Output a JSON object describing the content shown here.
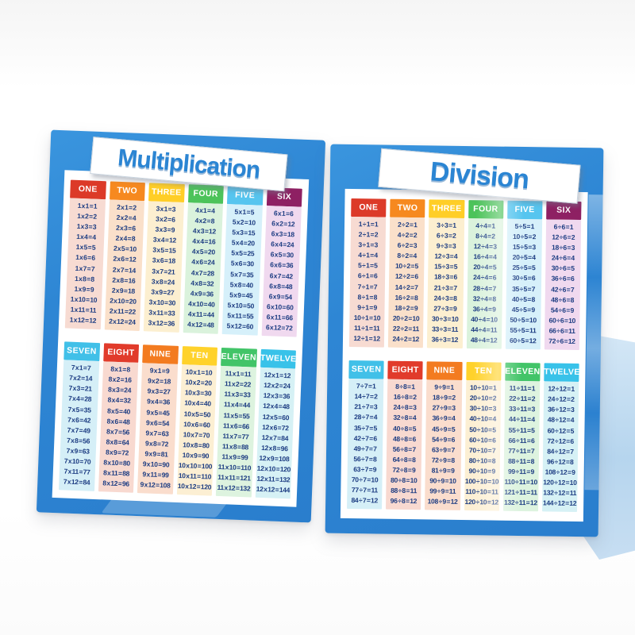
{
  "scene": {
    "poster_blue": "#2E86D4",
    "fact_text_color": "#1C3C82",
    "title_text_color": "#2B85D3",
    "reflection_color": "#BBD7EF"
  },
  "posters": [
    {
      "id": "multiplication",
      "title": "Multiplication",
      "groups": [
        {
          "columns": [
            {
              "label": "ONE",
              "header_color": "#DC3A28",
              "strip_color": "#F7DBD2",
              "rows": [
                "1 x 1 = 1",
                "1 x 2 = 2",
                "1 x 3 = 3",
                "1 x 4 = 4",
                "1 x 5 = 5",
                "1 x 6 = 6",
                "1 x 7 = 7",
                "1 x 8 = 8",
                "1 x 9 = 9",
                "1 x 10 = 10",
                "1 x 11 = 11",
                "1 x 12 = 12"
              ]
            },
            {
              "label": "TWO",
              "header_color": "#F6891F",
              "strip_color": "#FAE0CA",
              "rows": [
                "2 x 1 = 2",
                "2 x 2 = 4",
                "2 x 3 = 6",
                "2 x 4 = 8",
                "2 x 5 = 10",
                "2 x 6 = 12",
                "2 x 7 = 14",
                "2 x 8 = 16",
                "2 x 9 = 18",
                "2 x 10 = 20",
                "2 x 11 = 22",
                "2 x 12 = 24"
              ]
            },
            {
              "label": "THREE",
              "header_color": "#FFCE27",
              "strip_color": "#FCEFD0",
              "rows": [
                "3 x 1 = 3",
                "3 x 2 = 6",
                "3 x 3 = 9",
                "3 x 4 = 12",
                "3 x 5 = 15",
                "3 x 6 = 18",
                "3 x 7 = 21",
                "3 x 8 = 24",
                "3 x 9 = 27",
                "3 x 10 = 30",
                "3 x 11 = 33",
                "3 x 12 = 36"
              ]
            },
            {
              "label": "FOUR",
              "header_color": "#4CC35A",
              "strip_color": "#DAF2DC",
              "rows": [
                "4 x 1 = 4",
                "4 x 2 = 8",
                "4 x 3 = 12",
                "4 x 4 = 16",
                "4 x 5 = 20",
                "4 x 6 = 24",
                "4 x 7 = 28",
                "4 x 8 = 32",
                "4 x 9 = 36",
                "4 x 10 = 40",
                "4 x 11 = 44",
                "4 x 12 = 48"
              ]
            },
            {
              "label": "FIVE",
              "header_color": "#56C5EF",
              "strip_color": "#D6F0FA",
              "rows": [
                "5 x 1 = 5",
                "5 x 2 = 10",
                "5 x 3 = 15",
                "5 x 4 = 20",
                "5 x 5 = 25",
                "5 x 6 = 30",
                "5 x 7 = 35",
                "5 x 8 = 40",
                "5 x 9 = 45",
                "5 x 10 = 50",
                "5 x 11 = 55",
                "5 x 12 = 60"
              ]
            },
            {
              "label": "SIX",
              "header_color": "#8E2063",
              "strip_color": "#F0D9EF",
              "rows": [
                "6 x 1 = 6",
                "6 x 2 = 12",
                "6 x 3 = 18",
                "6 x 4 = 24",
                "6 x 5 = 30",
                "6 x 6 = 36",
                "6 x 7 = 42",
                "6 x 8 = 48",
                "6 x 9 = 54",
                "6 x 10 = 60",
                "6 x 11 = 66",
                "6 x 12 = 72"
              ]
            }
          ]
        },
        {
          "columns": [
            {
              "label": "SEVEN",
              "header_color": "#41C0E8",
              "strip_color": "#D5EFF7",
              "rows": [
                "7 x 1 = 7",
                "7 x 2 = 14",
                "7 x 3 = 21",
                "7 x 4 = 28",
                "7 x 5 = 35",
                "7 x 6 = 42",
                "7 x 7 = 49",
                "7 x 8 = 56",
                "7 x 9 = 63",
                "7 x 10 = 70",
                "7 x 11 = 77",
                "7 x 12 = 84"
              ]
            },
            {
              "label": "EIGHT",
              "header_color": "#E13B2B",
              "strip_color": "#F8D9D0",
              "rows": [
                "8 x 1 = 8",
                "8 x 2 = 16",
                "8 x 3 = 24",
                "8 x 4 = 32",
                "8 x 5 = 40",
                "8 x 6 = 48",
                "8 x 7 = 56",
                "8 x 8 = 64",
                "8 x 9 = 72",
                "8 x 10 = 80",
                "8 x 11 = 88",
                "8 x 12 = 96"
              ]
            },
            {
              "label": "NINE",
              "header_color": "#F37B20",
              "strip_color": "#FADDCD",
              "rows": [
                "9 x 1 = 9",
                "9 x 2 = 18",
                "9 x 3 = 27",
                "9 x 4 = 36",
                "9 x 5 = 45",
                "9 x 6 = 54",
                "9 x 7 = 63",
                "9 x 8 = 72",
                "9 x 9 = 81",
                "9 x 10 = 90",
                "9 x 11 = 99",
                "9 x 12 = 108"
              ]
            },
            {
              "label": "TEN",
              "header_color": "#FFD22B",
              "strip_color": "#FCEFD3",
              "rows": [
                "10 x 1 = 10",
                "10 x 2 = 20",
                "10 x 3 = 30",
                "10 x 4 = 40",
                "10 x 5 = 50",
                "10 x 6 = 60",
                "10 x 7 = 70",
                "10 x 8 = 80",
                "10 x 9 = 90",
                "10 x 10 = 100",
                "10 x 11 = 110",
                "10 x 12 = 120"
              ]
            },
            {
              "label": "ELEVEN",
              "header_color": "#42C468",
              "strip_color": "#DDF3DF",
              "rows": [
                "11 x 1 = 11",
                "11 x 2 = 22",
                "11 x 3 = 33",
                "11 x 4 = 44",
                "11 x 5 = 55",
                "11 x 6 = 66",
                "11 x 7 = 77",
                "11 x 8 = 88",
                "11 x 9 = 99",
                "11 x 10 = 110",
                "11 x 11 = 121",
                "11 x 12 = 132"
              ]
            },
            {
              "label": "TWELVE",
              "header_color": "#38C2E9",
              "strip_color": "#D6F1F5",
              "rows": [
                "12 x 1 = 12",
                "12 x 2 = 24",
                "12 x 3 = 36",
                "12 x 4 = 48",
                "12 x 5 = 60",
                "12 x 6 = 72",
                "12 x 7 = 84",
                "12 x 8 = 96",
                "12 x 9 = 108",
                "12 x 10 = 120",
                "12 x 11 = 132",
                "12 x 12 = 144"
              ]
            }
          ]
        }
      ]
    },
    {
      "id": "division",
      "title": "Division",
      "groups": [
        {
          "columns": [
            {
              "label": "ONE",
              "header_color": "#DC3A28",
              "strip_color": "#F7DBD2",
              "rows": [
                "1 ÷ 1 = 1",
                "2 ÷ 1 = 2",
                "3 ÷ 1 = 3",
                "4 ÷ 1 = 4",
                "5 ÷ 1 = 5",
                "6 ÷ 1 = 6",
                "7 ÷ 1 = 7",
                "8 ÷ 1 = 8",
                "9 ÷ 1 = 9",
                "10 ÷ 1 = 10",
                "11 ÷ 1 = 11",
                "12 ÷ 1 = 12"
              ]
            },
            {
              "label": "TWO",
              "header_color": "#F6891F",
              "strip_color": "#FAE0CA",
              "rows": [
                "2 ÷ 2 = 1",
                "4 ÷ 2 = 2",
                "6 ÷ 2 = 3",
                "8 ÷ 2 = 4",
                "10 ÷ 2 = 5",
                "12 ÷ 2 = 6",
                "14 ÷ 2 = 7",
                "16 ÷ 2 = 8",
                "18 ÷ 2 = 9",
                "20 ÷ 2 = 10",
                "22 ÷ 2 = 11",
                "24 ÷ 2 = 12"
              ]
            },
            {
              "label": "THREE",
              "header_color": "#FFCE27",
              "strip_color": "#FCEFD0",
              "rows": [
                "3 ÷ 3 = 1",
                "6 ÷ 3 = 2",
                "9 ÷ 3 = 3",
                "12 ÷ 3 = 4",
                "15 ÷ 3 = 5",
                "18 ÷ 3 = 6",
                "21 ÷ 3 = 7",
                "24 ÷ 3 = 8",
                "27 ÷ 3 = 9",
                "30 ÷ 3 = 10",
                "33 ÷ 3 = 11",
                "36 ÷ 3 = 12"
              ]
            },
            {
              "label": "FOUR",
              "header_color": "#4CC35A",
              "strip_color": "#DAF2DC",
              "rows": [
                "4 ÷ 4 = 1",
                "8 ÷ 4 = 2",
                "12 ÷ 4 = 3",
                "16 ÷ 4 = 4",
                "20 ÷ 4 = 5",
                "24 ÷ 4 = 6",
                "28 ÷ 4 = 7",
                "32 ÷ 4 = 8",
                "36 ÷ 4 = 9",
                "40 ÷ 4 = 10",
                "44 ÷ 4 = 11",
                "48 ÷ 4 = 12"
              ]
            },
            {
              "label": "FIVE",
              "header_color": "#56C5EF",
              "strip_color": "#D6F0FA",
              "rows": [
                "5 ÷ 5 = 1",
                "10 ÷ 5 = 2",
                "15 ÷ 5 = 3",
                "20 ÷ 5 = 4",
                "25 ÷ 5 = 5",
                "30 ÷ 5 = 6",
                "35 ÷ 5 = 7",
                "40 ÷ 5 = 8",
                "45 ÷ 5 = 9",
                "50 ÷ 5 = 10",
                "55 ÷ 5 = 11",
                "60 ÷ 5 = 12"
              ]
            },
            {
              "label": "SIX",
              "header_color": "#8E2063",
              "strip_color": "#F0D9EF",
              "rows": [
                "6 ÷ 6 = 1",
                "12 ÷ 6 = 2",
                "18 ÷ 6 = 3",
                "24 ÷ 6 = 4",
                "30 ÷ 6 = 5",
                "36 ÷ 6 = 6",
                "42 ÷ 6 = 7",
                "48 ÷ 6 = 8",
                "54 ÷ 6 = 9",
                "60 ÷ 6 = 10",
                "66 ÷ 6 = 11",
                "72 ÷ 6 = 12"
              ]
            }
          ]
        },
        {
          "columns": [
            {
              "label": "SEVEN",
              "header_color": "#41C0E8",
              "strip_color": "#D5EFF7",
              "rows": [
                "7 ÷ 7 = 1",
                "14 ÷ 7 = 2",
                "21 ÷ 7 = 3",
                "28 ÷ 7 = 4",
                "35 ÷ 7 = 5",
                "42 ÷ 7 = 6",
                "49 ÷ 7 = 7",
                "56 ÷ 7 = 8",
                "63 ÷ 7 = 9",
                "70 ÷ 7 = 10",
                "77 ÷ 7 = 11",
                "84 ÷ 7 = 12"
              ]
            },
            {
              "label": "EIGHT",
              "header_color": "#E13B2B",
              "strip_color": "#F8D9D0",
              "rows": [
                "8 ÷ 8 = 1",
                "16 ÷ 8 = 2",
                "24 ÷ 8 = 3",
                "32 ÷ 8 = 4",
                "40 ÷ 8 = 5",
                "48 ÷ 8 = 6",
                "56 ÷ 8 = 7",
                "64 ÷ 8 = 8",
                "72 ÷ 8 = 9",
                "80 ÷ 8 = 10",
                "88 ÷ 8 = 11",
                "96 ÷ 8 = 12"
              ]
            },
            {
              "label": "NINE",
              "header_color": "#F37B20",
              "strip_color": "#FADDCD",
              "rows": [
                "9 ÷ 9 = 1",
                "18 ÷ 9 = 2",
                "27 ÷ 9 = 3",
                "36 ÷ 9 = 4",
                "45 ÷ 9 = 5",
                "54 ÷ 9 = 6",
                "63 ÷ 9 = 7",
                "72 ÷ 9 = 8",
                "81 ÷ 9 = 9",
                "90 ÷ 9 = 10",
                "99 ÷ 9 = 11",
                "108 ÷ 9 = 12"
              ]
            },
            {
              "label": "TEN",
              "header_color": "#FFD22B",
              "strip_color": "#FCEFD3",
              "rows": [
                "10 ÷ 10 = 1",
                "20 ÷ 10 = 2",
                "30 ÷ 10 = 3",
                "40 ÷ 10 = 4",
                "50 ÷ 10 = 5",
                "60 ÷ 10 = 6",
                "70 ÷ 10 = 7",
                "80 ÷ 10 = 8",
                "90 ÷ 10 = 9",
                "100 ÷ 10 = 10",
                "110 ÷ 10 = 11",
                "120 ÷ 10 = 12"
              ]
            },
            {
              "label": "ELEVEN",
              "header_color": "#42C468",
              "strip_color": "#DDF3DF",
              "rows": [
                "11 ÷ 11 = 1",
                "22 ÷ 11 = 2",
                "33 ÷ 11 = 3",
                "44 ÷ 11 = 4",
                "55 ÷ 11 = 5",
                "66 ÷ 11 = 6",
                "77 ÷ 11 = 7",
                "88 ÷ 11 = 8",
                "99 ÷ 11 = 9",
                "110 ÷ 11 = 10",
                "121 ÷ 11 = 11",
                "132 ÷ 11 = 12"
              ]
            },
            {
              "label": "TWELVE",
              "header_color": "#38C2E9",
              "strip_color": "#D6F1F5",
              "rows": [
                "12 ÷ 12 = 1",
                "24 ÷ 12 = 2",
                "36 ÷ 12 = 3",
                "48 ÷ 12 = 4",
                "60 ÷ 12 = 5",
                "72 ÷ 12 = 6",
                "84 ÷ 12 = 7",
                "96 ÷ 12 = 8",
                "108 ÷ 12 = 9",
                "120 ÷ 12 = 10",
                "132 ÷ 12 = 11",
                "144 ÷ 12 = 12"
              ]
            }
          ]
        }
      ]
    }
  ]
}
